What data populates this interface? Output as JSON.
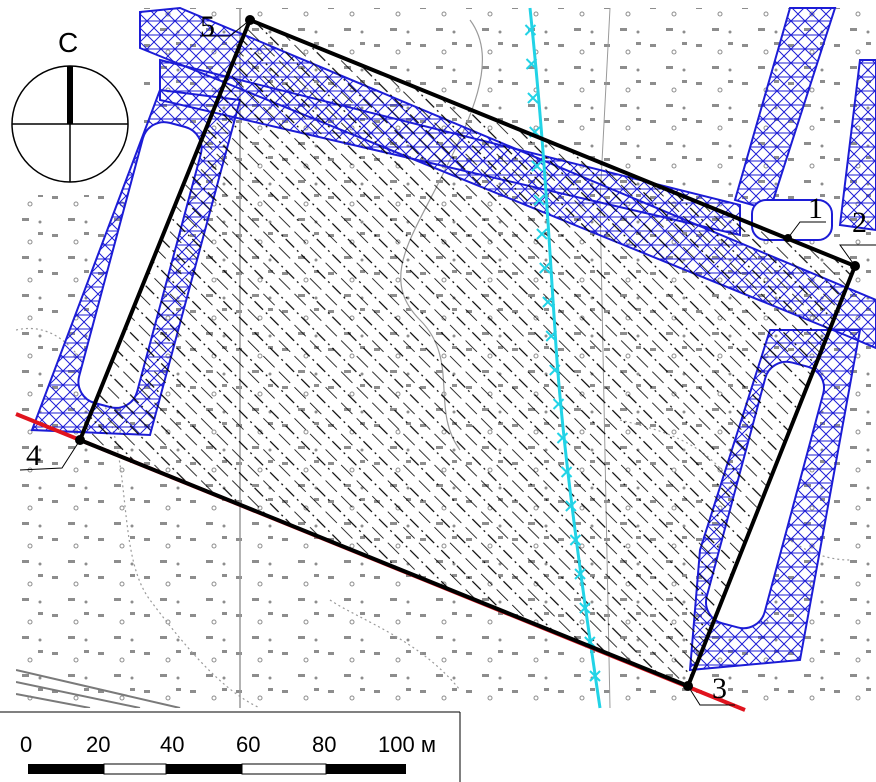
{
  "compass": {
    "north_letter": "С"
  },
  "points": [
    {
      "id": "1",
      "label": "1"
    },
    {
      "id": "2",
      "label": "2"
    },
    {
      "id": "3",
      "label": "3"
    },
    {
      "id": "4",
      "label": "4"
    },
    {
      "id": "5",
      "label": "5"
    }
  ],
  "scale_bar": {
    "ticks": [
      "0",
      "20",
      "40",
      "60",
      "80",
      "100 м"
    ]
  },
  "colors": {
    "boundary": "#000000",
    "red_line": "#e0141e",
    "utility_zone": "#1c1cd6",
    "cyan_line": "#22d3e6",
    "map_symbols": "#808080"
  }
}
